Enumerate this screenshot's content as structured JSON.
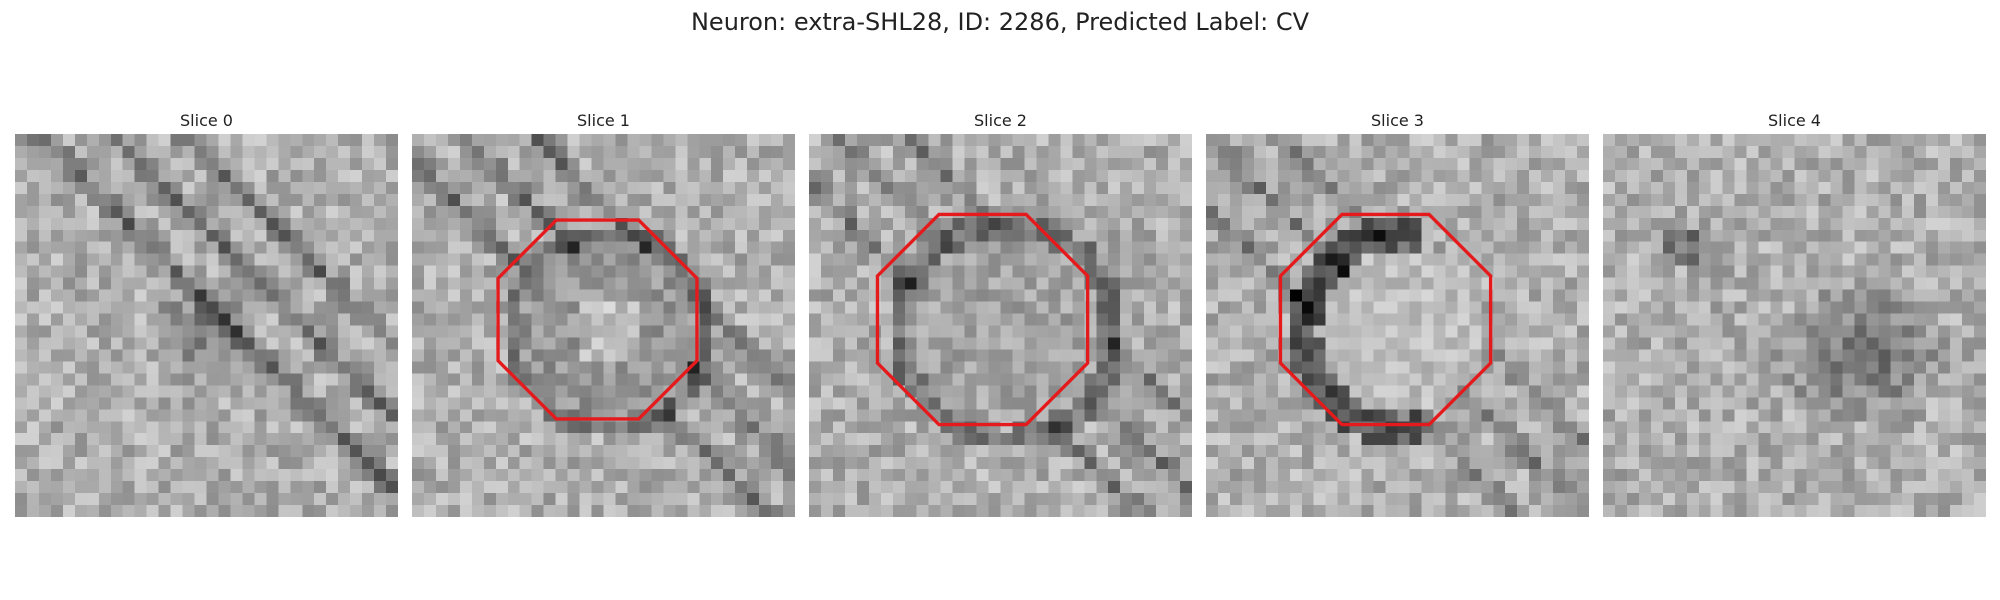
{
  "figure": {
    "title": "Neuron: extra-SHL28, ID: 2286, Predicted Label: CV"
  },
  "panels": [
    {
      "label": "Slice 0",
      "contour": false
    },
    {
      "label": "Slice 1",
      "contour": true
    },
    {
      "label": "Slice 2",
      "contour": true
    },
    {
      "label": "Slice 3",
      "contour": true
    },
    {
      "label": "Slice 4",
      "contour": false
    }
  ],
  "colors": {
    "contour": "#e41a1c",
    "colormap": "grayscale"
  }
}
